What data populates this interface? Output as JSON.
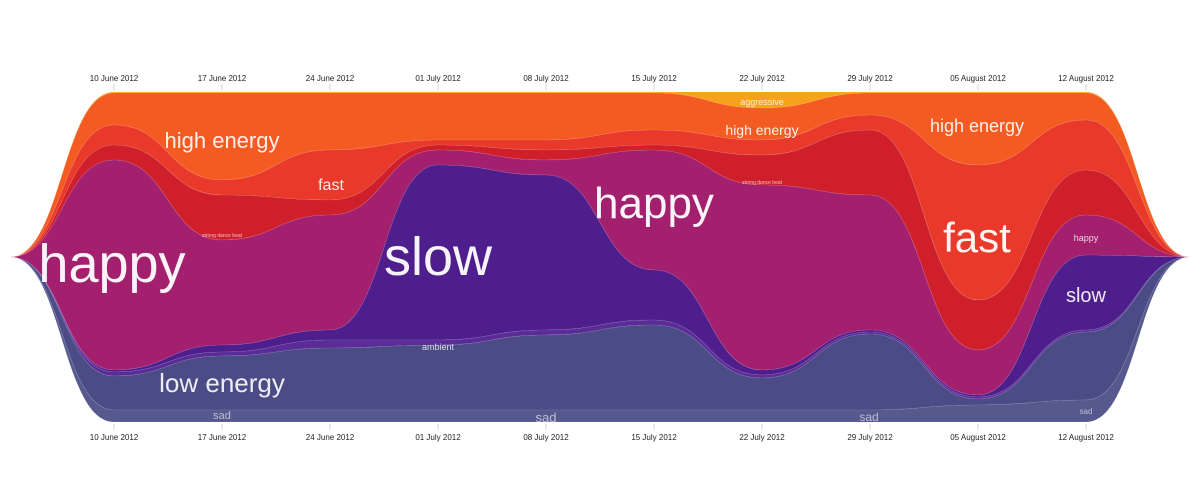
{
  "chart_data": {
    "type": "streamgraph",
    "x": [
      "10 June 2012",
      "17 June 2012",
      "24 June 2012",
      "01 July 2012",
      "08 July 2012",
      "15 July 2012",
      "22 July 2012",
      "29 July 2012",
      "05 August 2012",
      "12 August 2012"
    ],
    "series": [
      {
        "name": "aggressive",
        "color": "#f7a21b",
        "values": [
          1,
          1,
          1,
          1,
          1,
          1,
          16,
          1,
          1,
          1
        ]
      },
      {
        "name": "high energy",
        "color": "#f35b22",
        "values": [
          32,
          87,
          57,
          47,
          47,
          37,
          32,
          22,
          72,
          27
        ]
      },
      {
        "name": "fast",
        "color": "#e8392a",
        "values": [
          20,
          15,
          50,
          5,
          10,
          15,
          15,
          15,
          135,
          50
        ]
      },
      {
        "name": "strong dance beat",
        "color": "#cf1f2a",
        "values": [
          15,
          45,
          15,
          5,
          10,
          5,
          30,
          65,
          50,
          45
        ]
      },
      {
        "name": "happy",
        "color": "#a3206f",
        "values": [
          210,
          105,
          115,
          15,
          15,
          120,
          185,
          135,
          45,
          40
        ]
      },
      {
        "name": "slow",
        "color": "#4e1e8c",
        "values": [
          2,
          7,
          10,
          175,
          155,
          50,
          5,
          2,
          2,
          75
        ]
      },
      {
        "name": "ambient",
        "color": "#5b2c98",
        "values": [
          4,
          4,
          8,
          5,
          5,
          5,
          3,
          2,
          2,
          2
        ]
      },
      {
        "name": "low energy",
        "color": "#4b4b85",
        "values": [
          34,
          54,
          62,
          65,
          75,
          85,
          32,
          76,
          6,
          68
        ]
      },
      {
        "name": "sad",
        "color": "#55598e",
        "values": [
          12,
          12,
          12,
          12,
          12,
          12,
          12,
          12,
          17,
          22
        ]
      }
    ]
  }
}
